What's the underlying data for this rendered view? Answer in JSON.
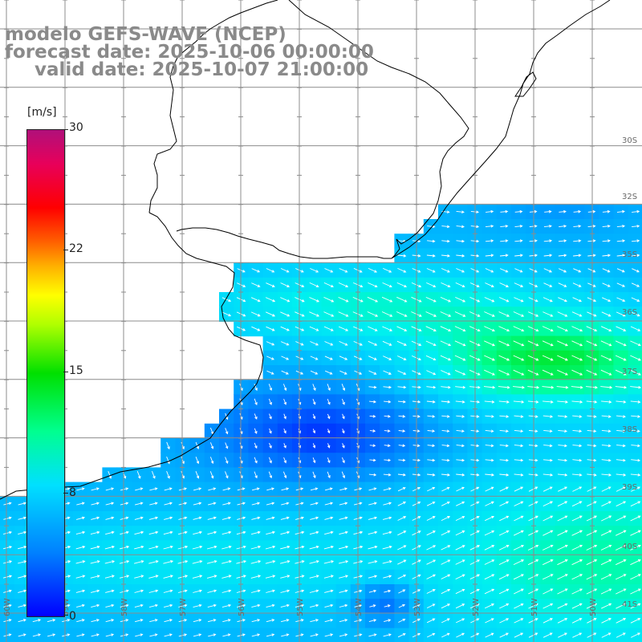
{
  "title": {
    "model": "modelo GEFS-WAVE (NCEP)",
    "forecast": "forecast date: 2025-10-06 00:00:00",
    "valid": "valid date: 2025-10-07 21:00:00"
  },
  "colorbar": {
    "unit": "[m/s]",
    "range": [
      0,
      30
    ],
    "ticks": [
      "30",
      "22",
      "15",
      "8",
      "0"
    ]
  },
  "axis_labels": {
    "lat": [
      "30S",
      "32S",
      "35S",
      "36S",
      "37S",
      "38S",
      "39S",
      "40S",
      "41S"
    ],
    "lon": [
      "60W",
      "59W",
      "58W",
      "57W",
      "56W",
      "55W",
      "54W",
      "53W",
      "52W",
      "51W",
      "50W"
    ]
  },
  "colors": {
    "land": "#ffffff",
    "grid": "#8c8c8c",
    "coast": "#000000",
    "arrow": "#ffffff",
    "title_text": "#8a8a8a"
  },
  "icons": [
    "wind-arrow-icon"
  ]
}
